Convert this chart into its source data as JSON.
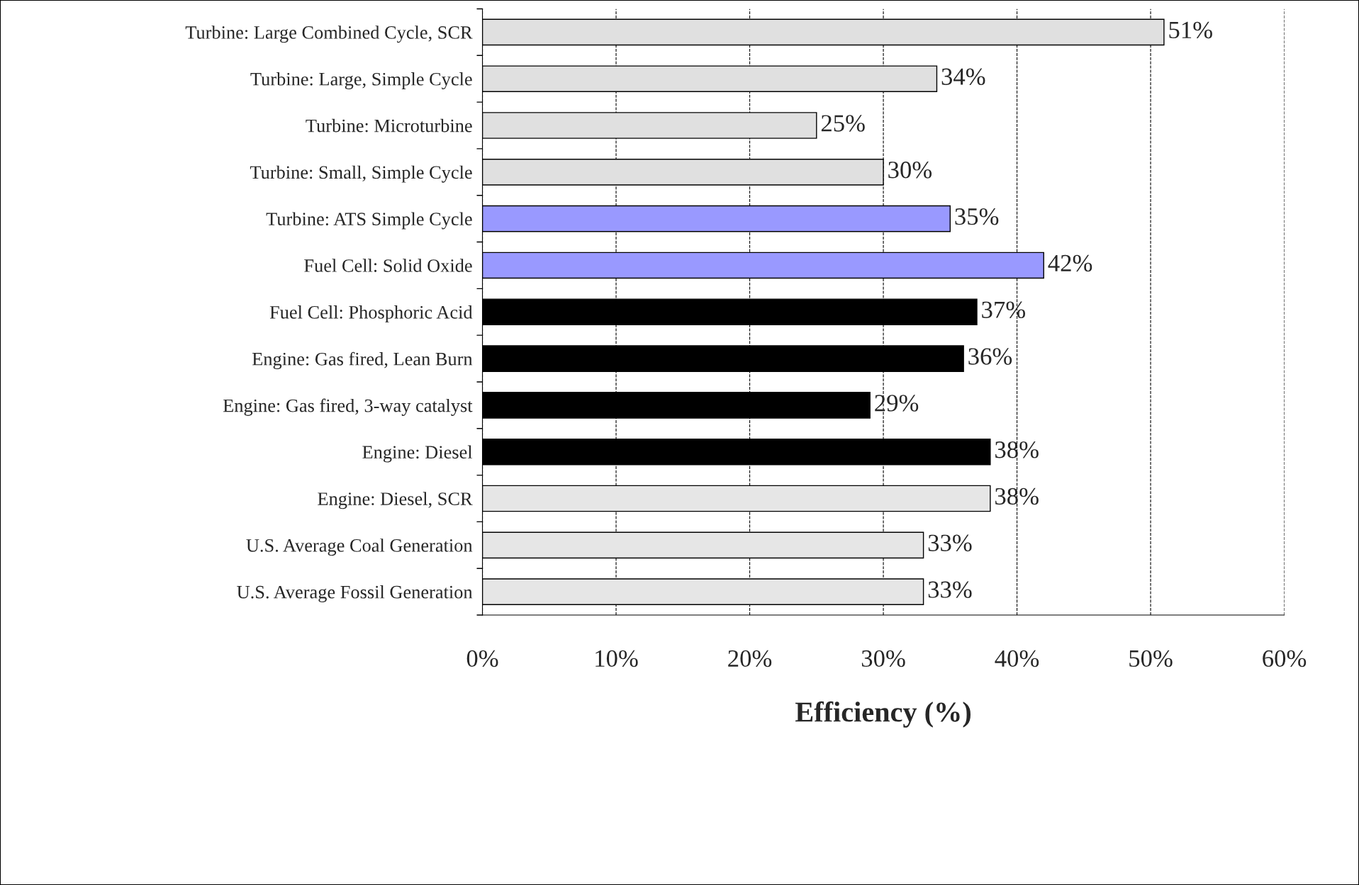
{
  "chart_data": {
    "type": "bar",
    "orientation": "horizontal",
    "xlabel": "Efficiency (%)",
    "categories": [
      "Turbine: Large Combined Cycle, SCR",
      "Turbine: Large, Simple Cycle",
      "Turbine: Microturbine",
      "Turbine: Small, Simple Cycle",
      "Turbine: ATS Simple Cycle",
      "Fuel Cell: Solid Oxide",
      "Fuel Cell: Phosphoric Acid",
      "Engine: Gas fired, Lean Burn",
      "Engine: Gas fired, 3-way catalyst",
      "Engine: Diesel",
      "Engine: Diesel, SCR",
      "U.S. Average Coal Generation",
      "U.S. Average Fossil Generation"
    ],
    "values": [
      51,
      34,
      25,
      30,
      35,
      42,
      37,
      36,
      29,
      38,
      38,
      33,
      33
    ],
    "value_labels": [
      "51%",
      "34%",
      "25%",
      "30%",
      "35%",
      "42%",
      "37%",
      "36%",
      "29%",
      "38%",
      "38%",
      "33%",
      "33%"
    ],
    "colors": [
      "#e0e0e0",
      "#e0e0e0",
      "#e0e0e0",
      "#e0e0e0",
      "#9999ff",
      "#9999ff",
      "#000000",
      "#000000",
      "#000000",
      "#000000",
      "#e6e6e6",
      "#e6e6e6",
      "#e6e6e6"
    ],
    "xlim": [
      0,
      60
    ],
    "xticks": [
      {
        "value": 0,
        "label": "0%"
      },
      {
        "value": 10,
        "label": "10%"
      },
      {
        "value": 20,
        "label": "20%"
      },
      {
        "value": 30,
        "label": "30%"
      },
      {
        "value": 40,
        "label": "40%"
      },
      {
        "value": 50,
        "label": "50%"
      },
      {
        "value": 60,
        "label": "60%"
      }
    ],
    "grid": "x",
    "legend": false
  }
}
